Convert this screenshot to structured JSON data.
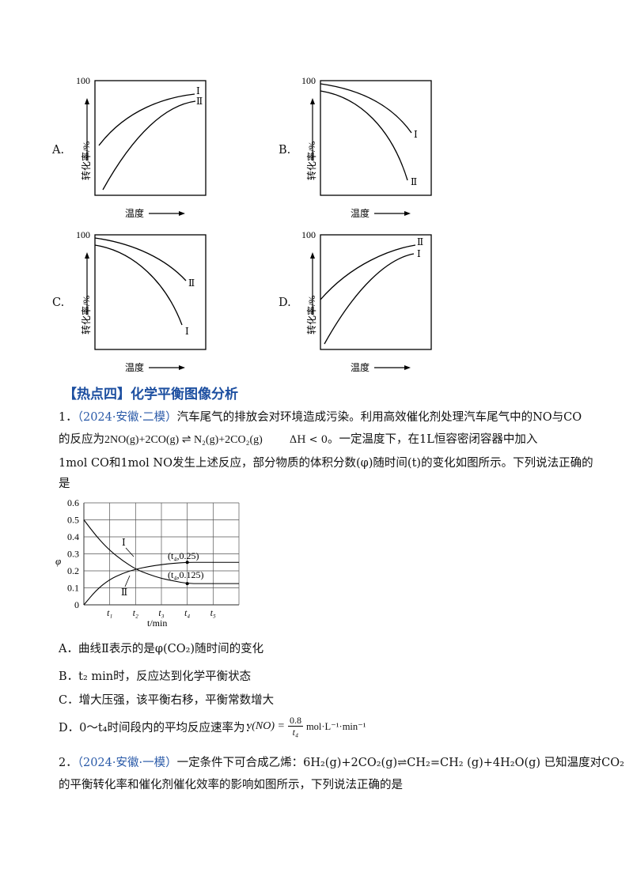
{
  "option_graphs": [
    {
      "letter": "A.",
      "ytop": "100",
      "ylabel": "转化率/%",
      "xlabel": "温度",
      "curve1": "Ⅰ",
      "curve2": "Ⅱ"
    },
    {
      "letter": "B.",
      "ytop": "100",
      "ylabel": "转化率/%",
      "xlabel": "温度",
      "curve1": "Ⅰ",
      "curve2": "Ⅱ"
    },
    {
      "letter": "C.",
      "ytop": "100",
      "ylabel": "转化率/%",
      "xlabel": "温度",
      "curve1": "Ⅱ",
      "curve2": "Ⅰ"
    },
    {
      "letter": "D.",
      "ytop": "100",
      "ylabel": "转化率/%",
      "xlabel": "温度",
      "curve1": "Ⅱ",
      "curve2": "Ⅰ"
    }
  ],
  "section": {
    "title": "【热点四】化学平衡图像分析"
  },
  "q1": {
    "num": "1．",
    "source": "（2024·安徽·二模）",
    "line1": "汽车尾气的排放会对环境造成污染。利用高效催化剂处理汽车尾气中的NO与CO",
    "line2_pre": "的反应为",
    "equation": "2NO(g)+2CO(g) ⇌ N₂(g)+2CO₂(g)",
    "dh": "ΔH < 0",
    "line2_post": "。一定温度下，在1L恒容密闭容器中加入",
    "line3": "1mol CO和1mol NO发生上述反应，部分物质的体积分数(φ)随时间(t)的变化如图所示。下列说法正确的",
    "line4": "是",
    "options": {
      "a": "A．曲线Ⅱ表示的是φ(CO₂)随时间的变化",
      "b": "B．t₂ min时，反应达到化学平衡状态",
      "c": "C．增大压强，该平衡右移，平衡常数增大",
      "d_pre": "D．0～t₄时间段内的平均反应速率为：",
      "d_lhs": "v(NO) =",
      "d_num": "0.8",
      "d_den": "t₄",
      "d_unit": "mol·L⁻¹·min⁻¹"
    }
  },
  "chart_data": {
    "type": "line",
    "ylabel": "φ",
    "xlabel": "t/min",
    "yticks": [
      "0",
      "0.1",
      "0.2",
      "0.3",
      "0.4",
      "0.5",
      "0.6"
    ],
    "xticks": [
      "t₁",
      "t₂",
      "t₃",
      "t₄",
      "t₅"
    ],
    "ylim": [
      0,
      0.6
    ],
    "series": [
      {
        "name": "Ⅰ",
        "x": [
          0,
          0.5,
          1,
          1.5,
          2,
          2.5,
          3,
          3.5,
          4,
          4.5,
          5,
          6
        ],
        "values": [
          0.5,
          0.4,
          0.32,
          0.26,
          0.21,
          0.18,
          0.155,
          0.14,
          0.125,
          0.125,
          0.125,
          0.125
        ]
      },
      {
        "name": "Ⅱ",
        "x": [
          0,
          0.5,
          1,
          1.5,
          2,
          2.5,
          3,
          3.5,
          4,
          4.5,
          5,
          6
        ],
        "values": [
          0,
          0.09,
          0.15,
          0.185,
          0.21,
          0.225,
          0.237,
          0.245,
          0.25,
          0.25,
          0.25,
          0.25
        ]
      }
    ],
    "annotations": [
      "(t₄,0.25)",
      "(t₄,0.125)"
    ]
  },
  "q2": {
    "num": "2．",
    "source": "（2024·安徽·一模）",
    "line1": "一定条件下可合成乙烯：6H₂(g)+2CO₂(g)⇌CH₂=CH₂ (g)+4H₂O(g) 已知温度对CO₂",
    "line2": "的平衡转化率和催化剂催化效率的影响如图所示，下列说法正确的是"
  }
}
